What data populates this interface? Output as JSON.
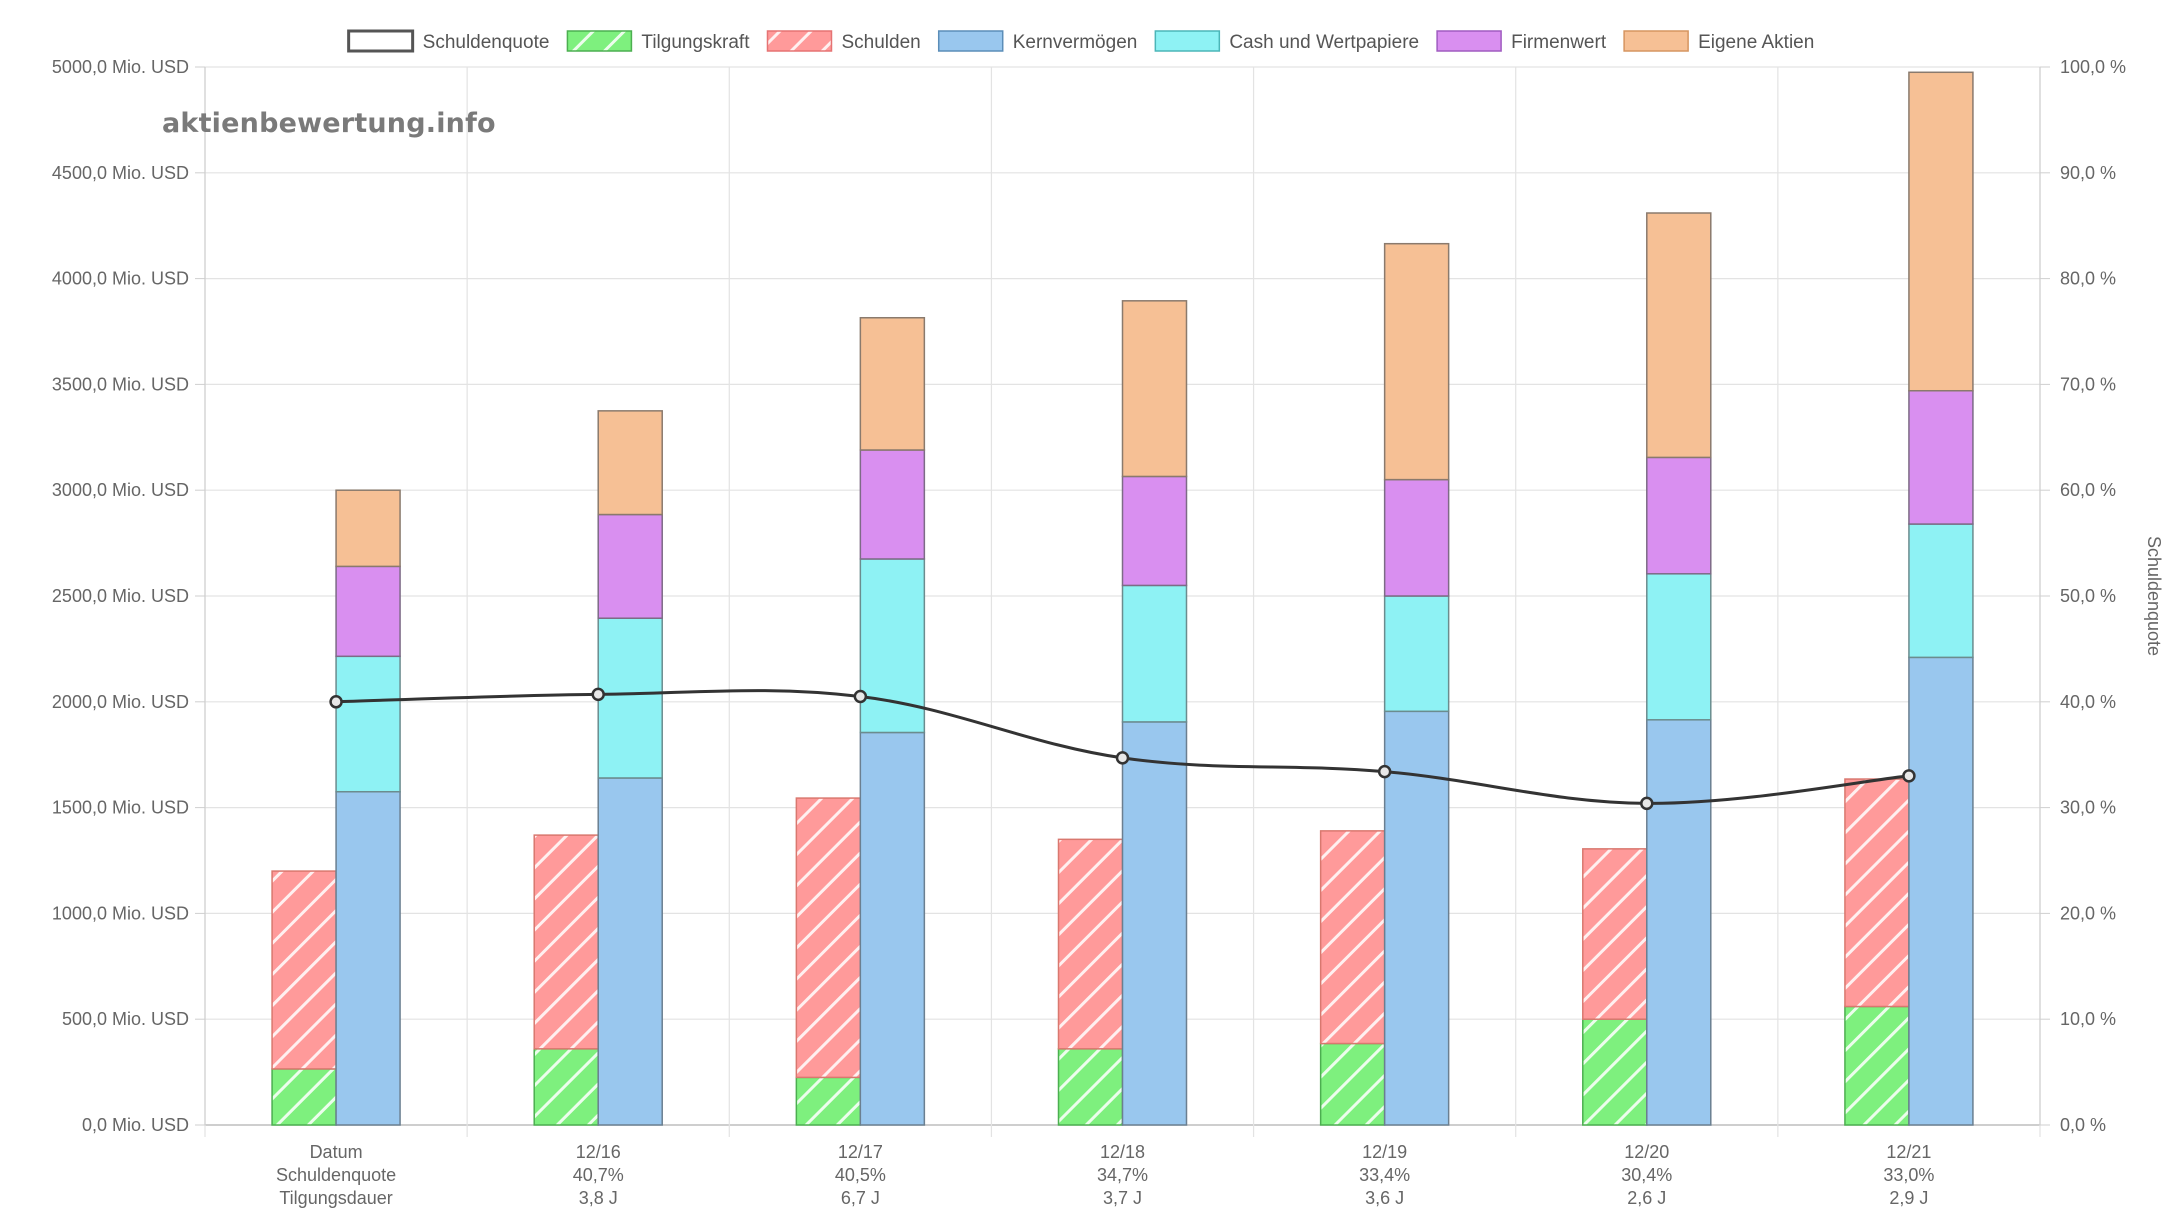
{
  "watermark": "aktienbewertung.info",
  "chart_data": {
    "type": "bar",
    "categories": [
      "Datum",
      "12/16",
      "12/17",
      "12/18",
      "12/19",
      "12/20",
      "12/21"
    ],
    "category_lines": [
      [
        "Datum",
        "Schuldenquote",
        "Tilgungsdauer"
      ],
      [
        "12/16",
        "40,7%",
        "3,8 J"
      ],
      [
        "12/17",
        "40,5%",
        "6,7 J"
      ],
      [
        "12/18",
        "34,7%",
        "3,7 J"
      ],
      [
        "12/19",
        "33,4%",
        "3,6 J"
      ],
      [
        "12/20",
        "30,4%",
        "2,6 J"
      ],
      [
        "12/21",
        "33,0%",
        "2,9 J"
      ]
    ],
    "legend": [
      {
        "name": "Schuldenquote",
        "color": "#ffffff",
        "border": "#555555",
        "pattern": false
      },
      {
        "name": "Tilgungskraft",
        "color": "#7ef07e",
        "border": "#4caf50",
        "pattern": true
      },
      {
        "name": "Schulden",
        "color": "#ff9a9a",
        "border": "#e57373",
        "pattern": true
      },
      {
        "name": "Kernvermögen",
        "color": "#99c7ee",
        "border": "#5b8db8",
        "pattern": false
      },
      {
        "name": "Cash und Wertpapiere",
        "color": "#8ef2f4",
        "border": "#4bb6b8",
        "pattern": false
      },
      {
        "name": "Firmenwert",
        "color": "#d98ff0",
        "border": "#a05cc0",
        "pattern": false
      },
      {
        "name": "Eigene Aktien",
        "color": "#f6c095",
        "border": "#d69560",
        "pattern": false
      }
    ],
    "left_stack": [
      {
        "name": "Tilgungskraft",
        "values": [
          265,
          360,
          225,
          360,
          385,
          500,
          560
        ]
      },
      {
        "name": "Schulden",
        "values": [
          935,
          1010,
          1320,
          990,
          1005,
          805,
          1075
        ]
      }
    ],
    "right_stack": [
      {
        "name": "Kernvermögen",
        "values": [
          1575,
          1640,
          1855,
          1905,
          1955,
          1915,
          2210
        ]
      },
      {
        "name": "Cash und Wertpapiere",
        "values": [
          640,
          755,
          820,
          645,
          545,
          690,
          630
        ]
      },
      {
        "name": "Firmenwert",
        "values": [
          425,
          490,
          515,
          515,
          550,
          550,
          630
        ]
      },
      {
        "name": "Eigene Aktien",
        "values": [
          360,
          490,
          625,
          830,
          1115,
          1155,
          1505
        ]
      }
    ],
    "line": {
      "name": "Schuldenquote",
      "values": [
        40.0,
        40.7,
        40.5,
        34.7,
        33.4,
        30.4,
        33.0
      ],
      "color": "#333333"
    },
    "y_left": {
      "min": 0,
      "max": 5000,
      "step": 500,
      "suffix": " Mio. USD",
      "ticks": [
        "0,0 Mio. USD",
        "500,0 Mio. USD",
        "1000,0 Mio. USD",
        "1500,0 Mio. USD",
        "2000,0 Mio. USD",
        "2500,0 Mio. USD",
        "3000,0 Mio. USD",
        "3500,0 Mio. USD",
        "4000,0 Mio. USD",
        "4500,0 Mio. USD",
        "5000,0 Mio. USD"
      ]
    },
    "y_right": {
      "min": 0,
      "max": 100,
      "step": 10,
      "label": "Schuldenquote",
      "ticks": [
        "0,0 %",
        "10,0 %",
        "20,0 %",
        "30,0 %",
        "40,0 %",
        "50,0 %",
        "60,0 %",
        "70,0 %",
        "80,0 %",
        "90,0 %",
        "100,0 %"
      ]
    },
    "grid": true,
    "legend_position": "top"
  }
}
